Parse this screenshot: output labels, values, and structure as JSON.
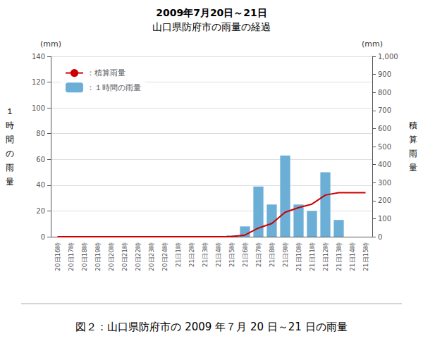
{
  "chart_data": {
    "type": "bar",
    "title": "2009年7月20日～21日",
    "subtitle": "山口県防府市の雨量の経過",
    "caption": "図２：山口県防府市の 2009 年７月 20 日～21 日の雨量",
    "categories": [
      "20日16時",
      "20日17時",
      "20日18時",
      "20日19時",
      "20日20時",
      "20日21時",
      "20日22時",
      "20日23時",
      "20日24時",
      "21日1時",
      "21日2時",
      "21日3時",
      "21日4時",
      "21日5時",
      "21日6時",
      "21日7時",
      "21日8時",
      "21日9時",
      "21日10時",
      "21日11時",
      "21日12時",
      "21日13時",
      "21日14時",
      "21日15時"
    ],
    "series": [
      {
        "name": "：１時間の雨量",
        "type": "bar",
        "color": "#6baed6",
        "values": [
          0,
          0,
          0,
          0,
          0,
          0,
          0,
          0,
          0,
          0,
          0,
          0,
          0,
          1,
          8,
          39,
          25,
          63,
          25,
          20,
          50,
          13,
          0,
          0
        ]
      },
      {
        "name": "：積算雨量",
        "type": "line",
        "axis": "y2",
        "color": "#cc0000",
        "values": [
          0,
          0,
          0,
          0,
          0,
          0,
          0,
          0,
          0,
          0,
          0,
          0,
          0,
          1,
          9,
          48,
          73,
          136,
          161,
          181,
          231,
          244,
          244,
          244
        ]
      }
    ],
    "ylabel": "１\n時\n間\nの\n雨\n量",
    "y2label": "積\n算\n雨\n量",
    "y_unit": "(mm)",
    "y2_unit": "(mm)",
    "ylim": [
      0,
      140
    ],
    "yticks": [
      0,
      20,
      40,
      60,
      80,
      100,
      120,
      140
    ],
    "y2lim": [
      0,
      1000
    ],
    "y2ticks": [
      0,
      100,
      200,
      300,
      400,
      500,
      600,
      700,
      800,
      900,
      1000
    ],
    "grid": true,
    "legend": "upper left"
  }
}
